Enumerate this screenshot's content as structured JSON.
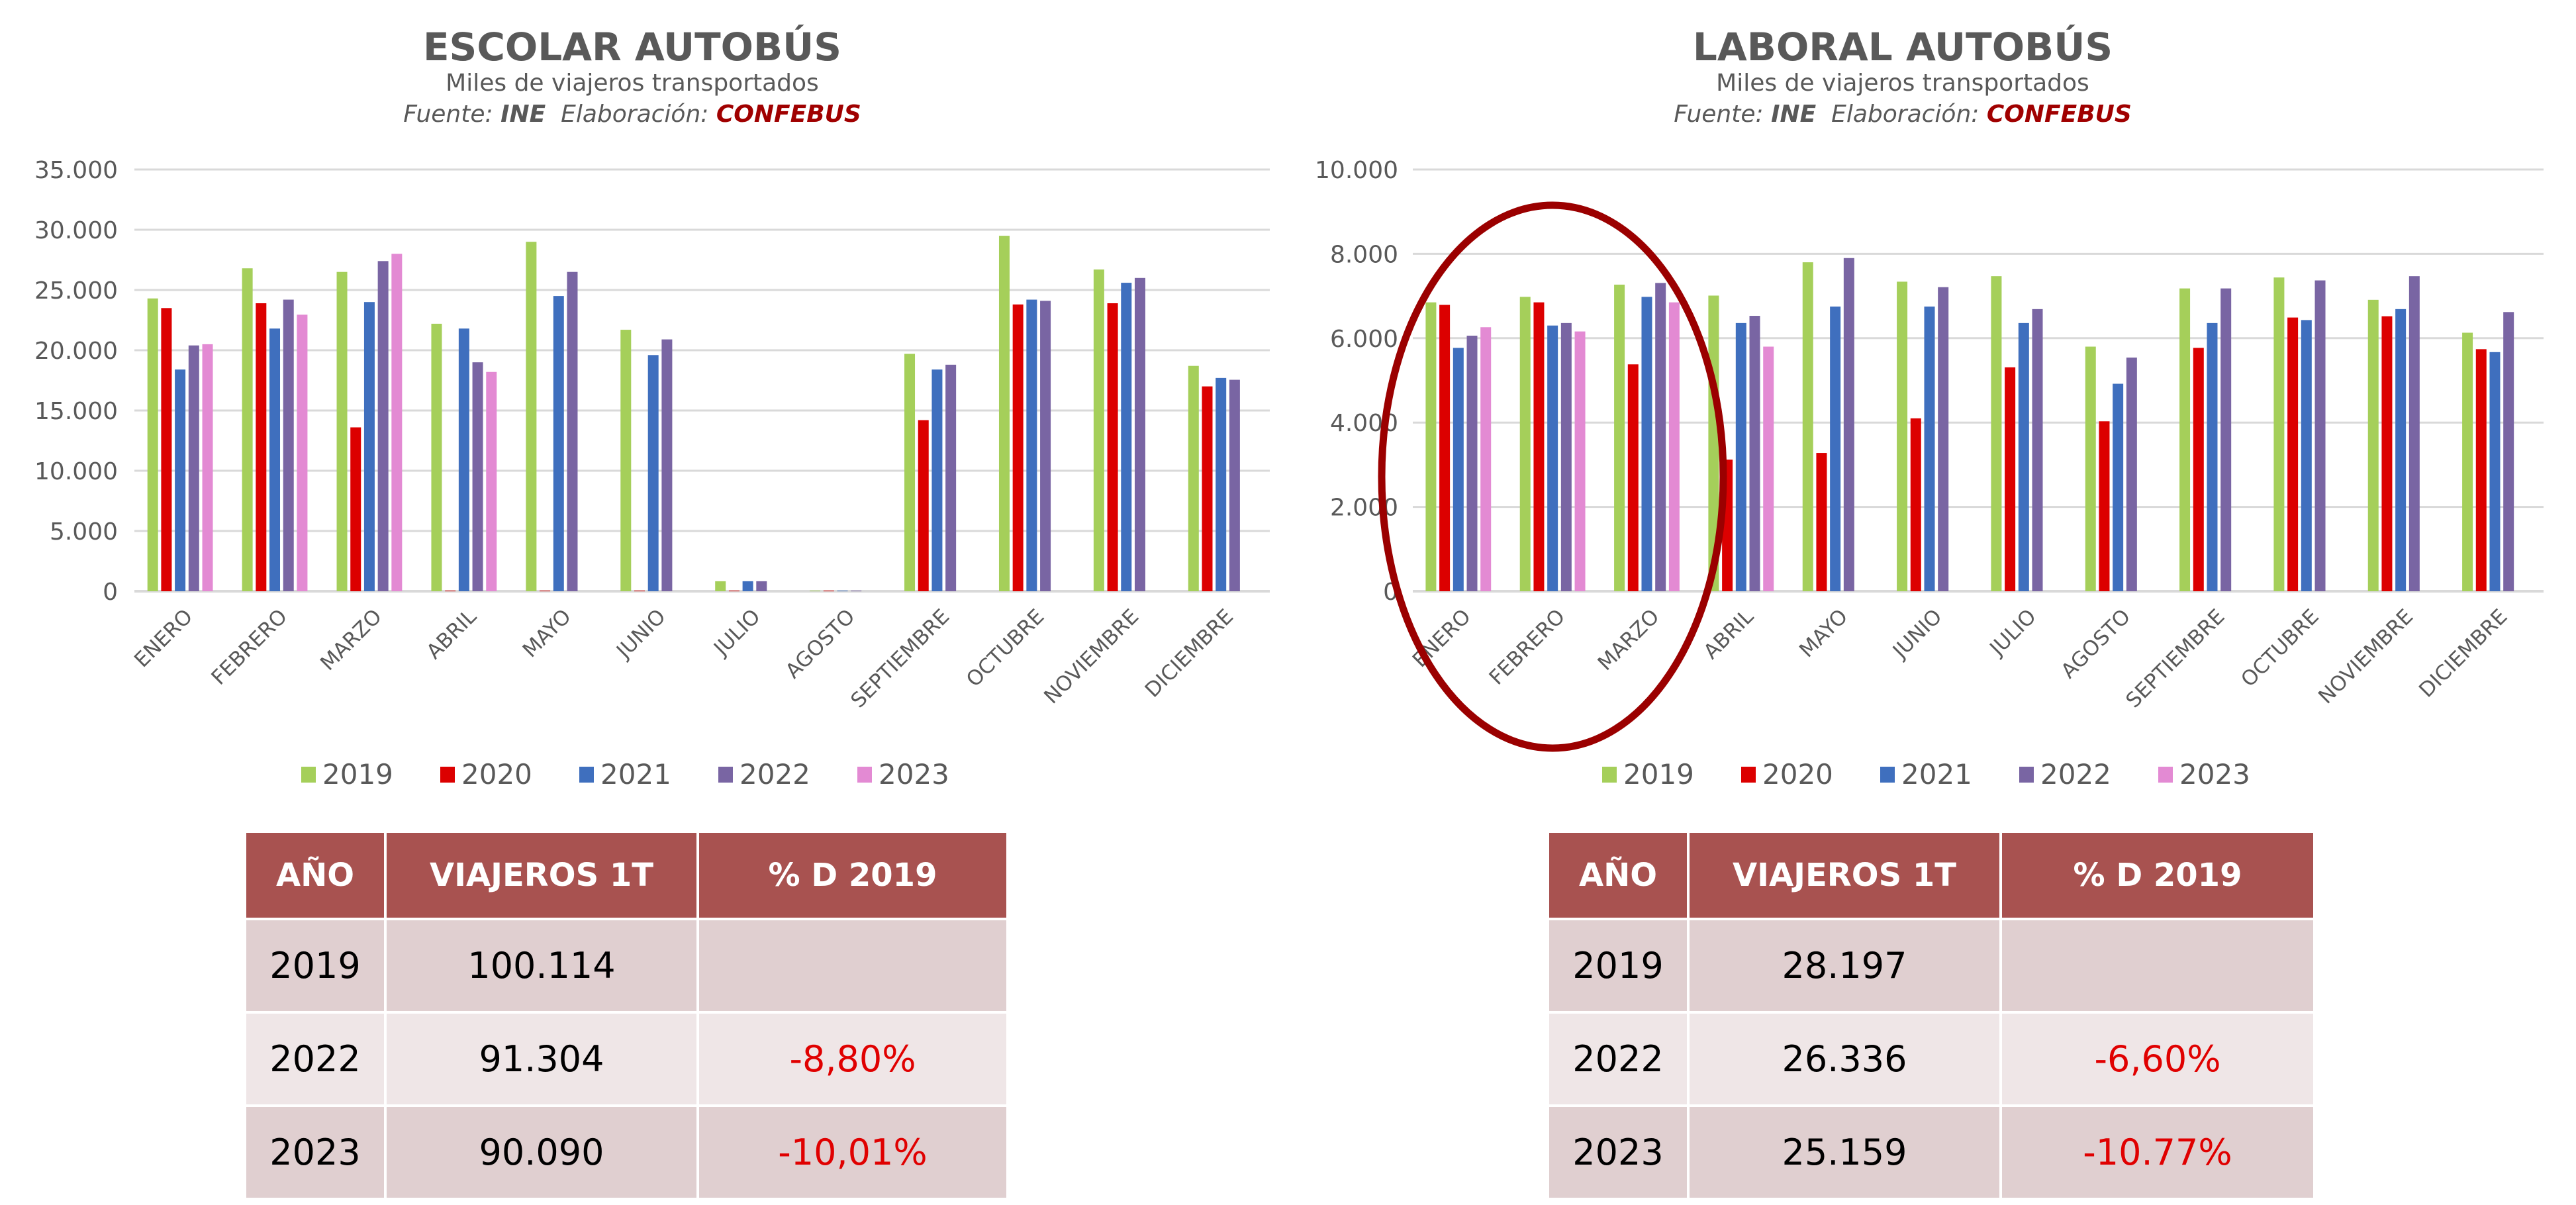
{
  "colors": {
    "2019": "#a5cf5a",
    "2020": "#dc0000",
    "2021": "#3f6fbe",
    "2022": "#7965a3",
    "2023": "#e38ad3",
    "header": "#a85250",
    "negative": "#e00000",
    "annotation": "#9b0000"
  },
  "left": {
    "title": "ESCOLAR AUTOBÚS",
    "subtitle": "Miles de viajeros transportados",
    "source_label": "Fuente:",
    "source": "INE",
    "made_label": "Elaboración:",
    "made_by": "CONFEBUS",
    "table": {
      "headers": [
        "AÑO",
        "VIAJEROS 1T",
        "% D 2019"
      ],
      "rows": [
        [
          "2019",
          "100.114",
          ""
        ],
        [
          "2022",
          "91.304",
          "-8,80%"
        ],
        [
          "2023",
          "90.090",
          "-10,01%"
        ]
      ]
    }
  },
  "right": {
    "title": "LABORAL AUTOBÚS",
    "subtitle": "Miles de viajeros transportados",
    "source_label": "Fuente:",
    "source": "INE",
    "made_label": "Elaboración:",
    "made_by": "CONFEBUS",
    "table": {
      "headers": [
        "AÑO",
        "VIAJEROS 1T",
        "% D 2019"
      ],
      "rows": [
        [
          "2019",
          "28.197",
          ""
        ],
        [
          "2022",
          "26.336",
          "-6,60%"
        ],
        [
          "2023",
          "25.159",
          "-10.77%"
        ]
      ]
    }
  },
  "chart_data": [
    {
      "type": "bar",
      "title": "ESCOLAR AUTOBÚS",
      "ylabel": "Miles de viajeros transportados",
      "ylim": [
        0,
        35000
      ],
      "yticks": [
        0,
        5000,
        10000,
        15000,
        20000,
        25000,
        30000,
        35000
      ],
      "ytick_labels": [
        "0",
        "5.000",
        "10.000",
        "15.000",
        "20.000",
        "25.000",
        "30.000",
        "35.000"
      ],
      "grid": true,
      "legend": "bottom",
      "categories": [
        "ENERO",
        "FEBRERO",
        "MARZO",
        "ABRIL",
        "MAYO",
        "JUNIO",
        "JULIO",
        "AGOSTO",
        "SEPTIEMBRE",
        "OCTUBRE",
        "NOVIEMBRE",
        "DICIEMBRE"
      ],
      "series": [
        {
          "name": "2019",
          "values": [
            24300,
            26800,
            26500,
            22200,
            29000,
            21700,
            830,
            50,
            19700,
            29500,
            26700,
            18700
          ]
        },
        {
          "name": "2020",
          "values": [
            23500,
            23900,
            13600,
            50,
            50,
            50,
            50,
            50,
            14200,
            23800,
            23900,
            17000
          ]
        },
        {
          "name": "2021",
          "values": [
            18400,
            21800,
            24000,
            21800,
            24500,
            19600,
            830,
            50,
            18400,
            24200,
            25600,
            17700
          ]
        },
        {
          "name": "2022",
          "values": [
            20400,
            24200,
            27400,
            19000,
            26500,
            20900,
            830,
            50,
            18800,
            24100,
            26000,
            17550
          ]
        },
        {
          "name": "2023",
          "values": [
            20500,
            22950,
            28000,
            18200,
            null,
            null,
            null,
            null,
            null,
            null,
            null,
            null
          ]
        }
      ]
    },
    {
      "type": "bar",
      "title": "LABORAL AUTOBÚS",
      "ylabel": "Miles de viajeros transportados",
      "ylim": [
        0,
        10000
      ],
      "yticks": [
        0,
        2000,
        4000,
        6000,
        8000,
        10000
      ],
      "ytick_labels": [
        "0",
        "2.000",
        "4.000",
        "6.000",
        "8.000",
        "10.000"
      ],
      "grid": true,
      "legend": "bottom",
      "categories": [
        "ENERO",
        "FEBRERO",
        "MARZO",
        "ABRIL",
        "MAYO",
        "JUNIO",
        "JULIO",
        "AGOSTO",
        "SEPTIEMBRE",
        "OCTUBRE",
        "NOVIEMBRE",
        "DICIEMBRE"
      ],
      "series": [
        {
          "name": "2019",
          "values": [
            6850,
            6980,
            7270,
            7010,
            7800,
            7340,
            7470,
            5800,
            7180,
            7440,
            6910,
            6130
          ]
        },
        {
          "name": "2020",
          "values": [
            6790,
            6850,
            5380,
            3120,
            3280,
            4100,
            5310,
            4030,
            5770,
            6490,
            6520,
            5740
          ]
        },
        {
          "name": "2021",
          "values": [
            5770,
            6300,
            6980,
            6360,
            6750,
            6750,
            6360,
            4920,
            6360,
            6430,
            6690,
            5670
          ]
        },
        {
          "name": "2022",
          "values": [
            6060,
            6360,
            7310,
            6530,
            7900,
            7210,
            6690,
            5540,
            7180,
            7370,
            7470,
            6620
          ]
        },
        {
          "name": "2023",
          "values": [
            6260,
            6160,
            6850,
            5800,
            null,
            null,
            null,
            null,
            null,
            null,
            null,
            null
          ]
        }
      ]
    }
  ]
}
